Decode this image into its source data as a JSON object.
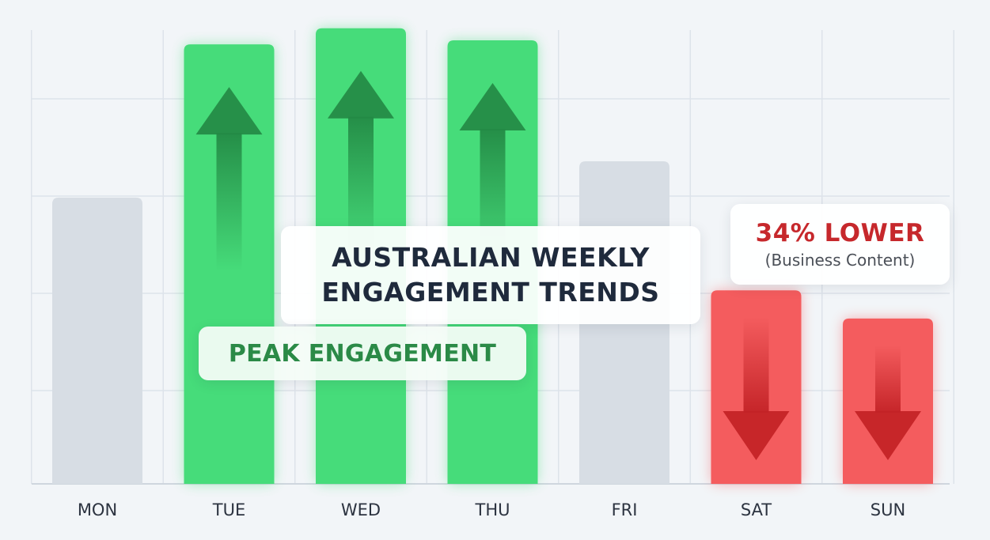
{
  "chart_data": {
    "type": "bar",
    "title": "AUSTRALIAN WEEKLY ENGAGEMENT TRENDS",
    "title_lines": [
      "AUSTRALIAN WEEKLY",
      "ENGAGEMENT TRENDS"
    ],
    "categories": [
      "MON",
      "TUE",
      "WED",
      "THU",
      "FRI",
      "SAT",
      "SUN"
    ],
    "values": [
      71,
      109,
      113,
      110,
      80,
      48,
      41
    ],
    "ylim": [
      0,
      120
    ],
    "grid": true,
    "colors": [
      "#d7dde4",
      "#46dc7a",
      "#46dc7a",
      "#46dc7a",
      "#d7dde4",
      "#f45c5e",
      "#f45c5e"
    ],
    "trend_arrows": [
      "none",
      "up",
      "up",
      "up",
      "none",
      "down",
      "down"
    ],
    "annotations": {
      "peak": "PEAK ENGAGEMENT",
      "lower_main": "34% LOWER",
      "lower_sub": "(Business Content)"
    }
  },
  "colors": {
    "background": "#f2f5f8",
    "neutral_bar": "#d7dde4",
    "peak_bar": "#46dc7a",
    "low_bar": "#f45c5e",
    "up_arrow": "#238a45",
    "down_arrow": "#c32226",
    "peak_text": "#2b8a47",
    "lower_text": "#c6282c"
  }
}
